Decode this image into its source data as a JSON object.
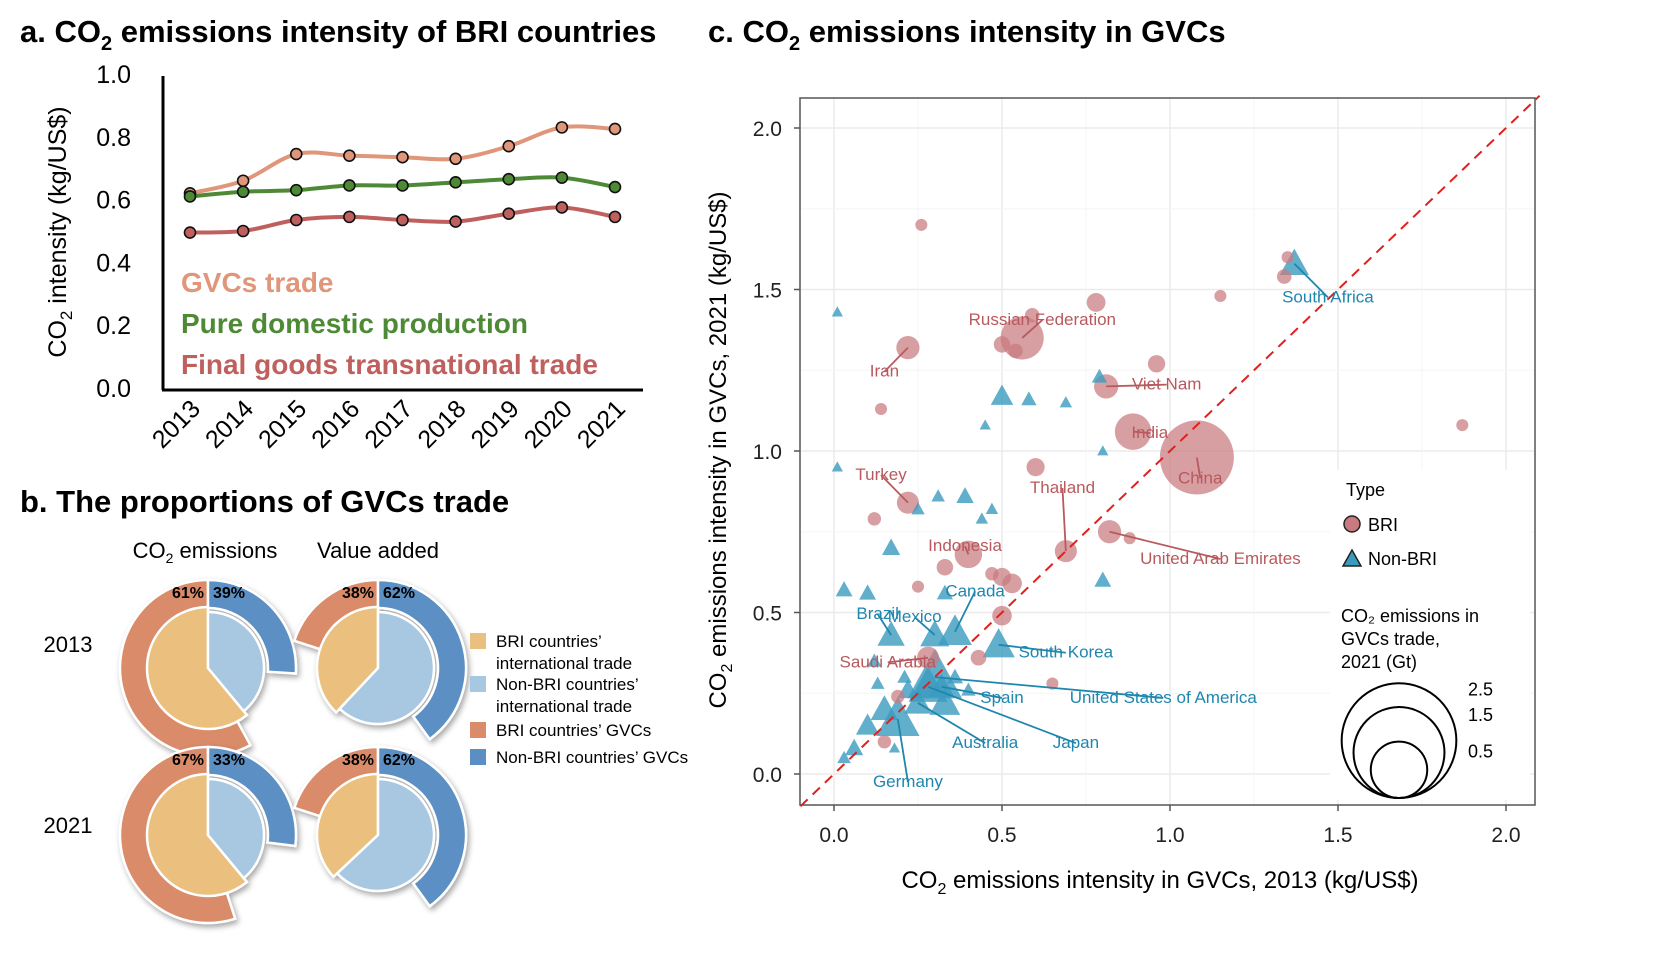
{
  "colors": {
    "gvcs": "#E0967A",
    "domestic": "#4E8A36",
    "final": "#C0605E",
    "bri_point": "#C97A7E",
    "nonbri_point": "#3B9BBF",
    "bri_label": "#B8595E",
    "nonbri_label": "#1F86AE",
    "diag": "#E0201E",
    "pie_bri_trade": "#EBC07E",
    "pie_nonbri_trade": "#A8C8E2",
    "pie_bri_gvcs": "#D98B6A",
    "pie_nonbri_gvcs": "#5B8FC3"
  },
  "panel_a": {
    "title_prefix": "a. CO",
    "title_sub": "2",
    "title_suffix": " emissions intensity of BRI countries",
    "ylabel_prefix": "CO",
    "ylabel_sub": "2",
    "ylabel_suffix": " intensity (kg/US$)"
  },
  "panel_b": {
    "title": "b. The proportions of GVCs trade",
    "col_heads": [
      {
        "prefix": "CO",
        "sub": "2",
        "suffix": " emissions"
      },
      {
        "prefix": "Value added",
        "sub": "",
        "suffix": ""
      }
    ],
    "row_labels": [
      "2013",
      "2021"
    ],
    "pies": [
      {
        "year": "2013",
        "metric": "CO2 emissions",
        "bri_trade_share": 0.61,
        "bri_gvcs_label": "61%",
        "nonbri_gvcs_label": "39%",
        "bri_gvcs_arc": 0.58,
        "nonbri_gvcs_arc": 0.26
      },
      {
        "year": "2013",
        "metric": "Value added",
        "bri_trade_share": 0.38,
        "bri_gvcs_label": "38%",
        "nonbri_gvcs_label": "62%",
        "bri_gvcs_arc": 0.2,
        "nonbri_gvcs_arc": 0.4
      },
      {
        "year": "2021",
        "metric": "CO2 emissions",
        "bri_trade_share": 0.61,
        "bri_gvcs_label": "67%",
        "nonbri_gvcs_label": "33%",
        "bri_gvcs_arc": 0.55,
        "nonbri_gvcs_arc": 0.27
      },
      {
        "year": "2021",
        "metric": "Value added",
        "bri_trade_share": 0.37,
        "bri_gvcs_label": "38%",
        "nonbri_gvcs_label": "62%",
        "bri_gvcs_arc": 0.2,
        "nonbri_gvcs_arc": 0.4
      }
    ],
    "legend": [
      {
        "line1": "BRI countries’",
        "line2": "international trade",
        "color_key": "pie_bri_trade"
      },
      {
        "line1": "Non-BRI countries’",
        "line2": "international trade",
        "color_key": "pie_nonbri_trade"
      },
      {
        "line1": "BRI countries’ GVCs",
        "line2": "",
        "color_key": "pie_bri_gvcs"
      },
      {
        "line1": "Non-BRI countries’ GVCs",
        "line2": "",
        "color_key": "pie_nonbri_gvcs"
      }
    ]
  },
  "panel_c": {
    "title_prefix": "c. CO",
    "title_sub": "2",
    "title_suffix": " emissions intensity in GVCs",
    "xlabel_prefix": "CO",
    "xlabel_sub": "2",
    "xlabel_suffix": " emissions intensity in GVCs, 2013 (kg/US$)",
    "ylabel_prefix": "CO",
    "ylabel_sub": "2",
    "ylabel_suffix": " emissions intensity in GVCs, 2021 (kg/US$)",
    "legend_type_title": "Type",
    "legend_type_items": [
      "BRI",
      "Non-BRI"
    ],
    "legend_size_title": [
      "CO₂ emissions in",
      "GVCs trade,",
      "2021 (Gt)"
    ],
    "legend_size_values": [
      2.5,
      1.5,
      0.5
    ],
    "legend_size_labels": [
      "2.5",
      "1.5",
      "0.5"
    ]
  },
  "chart_data": [
    {
      "type": "line",
      "title": "a. CO2 emissions intensity of BRI countries",
      "xlabel": "",
      "ylabel": "CO2 intensity (kg/US$)",
      "x": [
        "2013",
        "2014",
        "2015",
        "2016",
        "2017",
        "2018",
        "2019",
        "2020",
        "2021"
      ],
      "ylim": [
        0.0,
        1.0
      ],
      "yticks": [
        0.0,
        0.2,
        0.4,
        0.6,
        0.8,
        1.0
      ],
      "ytick_labels": [
        "0.0",
        "0.2",
        "0.4",
        "0.6",
        "0.8",
        "1.0"
      ],
      "grid": false,
      "legend_placement": "bottom-left (inline text)",
      "series": [
        {
          "name": "GVCs trade",
          "color_key": "gvcs",
          "values": [
            0.62,
            0.66,
            0.745,
            0.74,
            0.735,
            0.73,
            0.77,
            0.83,
            0.825
          ]
        },
        {
          "name": "Pure domestic production",
          "color_key": "domestic",
          "values": [
            0.61,
            0.625,
            0.63,
            0.645,
            0.645,
            0.655,
            0.665,
            0.67,
            0.64
          ]
        },
        {
          "name": "Final goods transnational trade",
          "color_key": "final",
          "values": [
            0.495,
            0.5,
            0.535,
            0.545,
            0.535,
            0.53,
            0.555,
            0.575,
            0.545
          ]
        }
      ]
    },
    {
      "type": "pie",
      "title": "b. The proportions of GVCs trade",
      "panels": [
        {
          "year": "2013",
          "metric": "CO2 emissions",
          "BRI GVCs": 61,
          "Non-BRI GVCs": 39
        },
        {
          "year": "2013",
          "metric": "Value added",
          "BRI GVCs": 38,
          "Non-BRI GVCs": 62
        },
        {
          "year": "2021",
          "metric": "CO2 emissions",
          "BRI GVCs": 67,
          "Non-BRI GVCs": 33
        },
        {
          "year": "2021",
          "metric": "Value added",
          "BRI GVCs": 38,
          "Non-BRI GVCs": 62
        }
      ],
      "legend": [
        "BRI countries’ international trade",
        "Non-BRI countries’ international trade",
        "BRI countries’ GVCs",
        "Non-BRI countries’ GVCs"
      ]
    },
    {
      "type": "scatter",
      "title": "c. CO2 emissions intensity in GVCs",
      "xlabel": "CO2 emissions intensity in GVCs, 2013 (kg/US$)",
      "ylabel": "CO2 emissions intensity in GVCs, 2021 (kg/US$)",
      "xlim": [
        -0.1,
        2.1
      ],
      "ylim": [
        -0.1,
        2.1
      ],
      "xticks": [
        0.0,
        0.5,
        1.0,
        1.5,
        2.0
      ],
      "yticks": [
        0.0,
        0.5,
        1.0,
        1.5,
        2.0
      ],
      "xtick_labels": [
        "0.0",
        "0.5",
        "1.0",
        "1.5",
        "2.0"
      ],
      "ytick_labels": [
        "0.0",
        "0.5",
        "1.0",
        "1.5",
        "2.0"
      ],
      "grid": true,
      "reference_line": "y = x (dashed red)",
      "legend_placement": "right",
      "points": [
        {
          "label": "China",
          "type": "BRI",
          "x": 1.08,
          "y": 0.98,
          "size": 2.5,
          "lx": 1.09,
          "ly": 0.9
        },
        {
          "label": "India",
          "type": "BRI",
          "x": 0.89,
          "y": 1.06,
          "size": 0.5,
          "lx": 0.94,
          "ly": 1.04
        },
        {
          "label": "Russian Federation",
          "type": "BRI",
          "x": 0.56,
          "y": 1.35,
          "size": 0.75,
          "lx": 0.62,
          "ly": 1.39
        },
        {
          "label": "Iran",
          "type": "BRI",
          "x": 0.22,
          "y": 1.32,
          "size": 0.16,
          "lx": 0.15,
          "ly": 1.23
        },
        {
          "label": "Viet Nam",
          "type": "BRI",
          "x": 0.81,
          "y": 1.2,
          "size": 0.18,
          "lx": 0.99,
          "ly": 1.19
        },
        {
          "label": "Turkey",
          "type": "BRI",
          "x": 0.22,
          "y": 0.84,
          "size": 0.14,
          "lx": 0.14,
          "ly": 0.91
        },
        {
          "label": "Thailand",
          "type": "BRI",
          "x": 0.69,
          "y": 0.69,
          "size": 0.14,
          "lx": 0.68,
          "ly": 0.87
        },
        {
          "label": "Indonesia",
          "type": "BRI",
          "x": 0.4,
          "y": 0.68,
          "size": 0.25,
          "lx": 0.39,
          "ly": 0.69
        },
        {
          "label": "United Arab Emirates",
          "type": "BRI",
          "x": 0.82,
          "y": 0.75,
          "size": 0.16,
          "lx": 1.15,
          "ly": 0.65
        },
        {
          "label": "Saudi Arabia",
          "type": "BRI",
          "x": 0.28,
          "y": 0.36,
          "size": 0.14,
          "lx": 0.16,
          "ly": 0.33
        },
        {
          "label": "",
          "type": "BRI",
          "x": 0.26,
          "y": 1.7,
          "size": 0.02
        },
        {
          "label": "",
          "type": "BRI",
          "x": 0.59,
          "y": 1.42,
          "size": 0.04
        },
        {
          "label": "",
          "type": "BRI",
          "x": 0.78,
          "y": 1.46,
          "size": 0.09
        },
        {
          "label": "",
          "type": "BRI",
          "x": 0.5,
          "y": 1.33,
          "size": 0.06
        },
        {
          "label": "",
          "type": "BRI",
          "x": 0.54,
          "y": 1.31,
          "size": 0.04
        },
        {
          "label": "",
          "type": "BRI",
          "x": 0.96,
          "y": 1.27,
          "size": 0.07
        },
        {
          "label": "",
          "type": "BRI",
          "x": 1.15,
          "y": 1.48,
          "size": 0.02
        },
        {
          "label": "",
          "type": "BRI",
          "x": 1.34,
          "y": 1.54,
          "size": 0.04
        },
        {
          "label": "",
          "type": "BRI",
          "x": 1.35,
          "y": 1.6,
          "size": 0.02
        },
        {
          "label": "",
          "type": "BRI",
          "x": 0.14,
          "y": 1.13,
          "size": 0.02
        },
        {
          "label": "",
          "type": "BRI",
          "x": 0.6,
          "y": 0.95,
          "size": 0.08
        },
        {
          "label": "",
          "type": "BRI",
          "x": 0.88,
          "y": 0.73,
          "size": 0.02
        },
        {
          "label": "",
          "type": "BRI",
          "x": 1.87,
          "y": 1.08,
          "size": 0.02
        },
        {
          "label": "",
          "type": "BRI",
          "x": 0.12,
          "y": 0.79,
          "size": 0.03
        },
        {
          "label": "",
          "type": "BRI",
          "x": 0.47,
          "y": 0.62,
          "size": 0.03
        },
        {
          "label": "",
          "type": "BRI",
          "x": 0.5,
          "y": 0.61,
          "size": 0.08
        },
        {
          "label": "",
          "type": "BRI",
          "x": 0.53,
          "y": 0.59,
          "size": 0.1
        },
        {
          "label": "",
          "type": "BRI",
          "x": 0.33,
          "y": 0.64,
          "size": 0.06
        },
        {
          "label": "",
          "type": "BRI",
          "x": 0.5,
          "y": 0.49,
          "size": 0.1
        },
        {
          "label": "",
          "type": "BRI",
          "x": 0.65,
          "y": 0.28,
          "size": 0.02
        },
        {
          "label": "",
          "type": "BRI",
          "x": 0.43,
          "y": 0.36,
          "size": 0.05
        },
        {
          "label": "",
          "type": "BRI",
          "x": 0.25,
          "y": 0.58,
          "size": 0.02
        },
        {
          "label": "",
          "type": "BRI",
          "x": 0.15,
          "y": 0.1,
          "size": 0.03
        },
        {
          "label": "",
          "type": "BRI",
          "x": 0.19,
          "y": 0.24,
          "size": 0.03
        },
        {
          "label": "South Africa",
          "type": "Non-BRI",
          "x": 1.37,
          "y": 1.58,
          "size": 0.35,
          "lx": 1.47,
          "ly": 1.46
        },
        {
          "label": "South Korea",
          "type": "Non-BRI",
          "x": 0.49,
          "y": 0.4,
          "size": 0.45,
          "lx": 0.69,
          "ly": 0.36
        },
        {
          "label": "Canada",
          "type": "Non-BRI",
          "x": 0.36,
          "y": 0.44,
          "size": 0.5,
          "lx": 0.42,
          "ly": 0.55
        },
        {
          "label": "Mexico",
          "type": "Non-BRI",
          "x": 0.3,
          "y": 0.43,
          "size": 0.35,
          "lx": 0.24,
          "ly": 0.47
        },
        {
          "label": "Brazil",
          "type": "Non-BRI",
          "x": 0.17,
          "y": 0.43,
          "size": 0.3,
          "lx": 0.13,
          "ly": 0.48
        },
        {
          "label": "Spain",
          "type": "Non-BRI",
          "x": 0.32,
          "y": 0.27,
          "size": 0.25,
          "lx": 0.5,
          "ly": 0.22
        },
        {
          "label": "United States of America",
          "type": "Non-BRI",
          "x": 0.3,
          "y": 0.3,
          "size": 1.5,
          "lx": 0.98,
          "ly": 0.22
        },
        {
          "label": "Japan",
          "type": "Non-BRI",
          "x": 0.28,
          "y": 0.27,
          "size": 0.7,
          "lx": 0.72,
          "ly": 0.08
        },
        {
          "label": "Australia",
          "type": "Non-BRI",
          "x": 0.25,
          "y": 0.22,
          "size": 0.3,
          "lx": 0.45,
          "ly": 0.08
        },
        {
          "label": "Germany",
          "type": "Non-BRI",
          "x": 0.19,
          "y": 0.17,
          "size": 0.9,
          "lx": 0.22,
          "ly": -0.04
        },
        {
          "label": "",
          "type": "Non-BRI",
          "x": 0.01,
          "y": 1.43,
          "size": 0.02
        },
        {
          "label": "",
          "type": "Non-BRI",
          "x": 0.01,
          "y": 0.95,
          "size": 0.02
        },
        {
          "label": "",
          "type": "Non-BRI",
          "x": 0.5,
          "y": 1.17,
          "size": 0.18
        },
        {
          "label": "",
          "type": "Non-BRI",
          "x": 0.58,
          "y": 1.16,
          "size": 0.06
        },
        {
          "label": "",
          "type": "Non-BRI",
          "x": 0.69,
          "y": 1.15,
          "size": 0.03
        },
        {
          "label": "",
          "type": "Non-BRI",
          "x": 0.79,
          "y": 1.23,
          "size": 0.06
        },
        {
          "label": "",
          "type": "Non-BRI",
          "x": 0.45,
          "y": 1.08,
          "size": 0.02
        },
        {
          "label": "",
          "type": "Non-BRI",
          "x": 0.8,
          "y": 1.0,
          "size": 0.02
        },
        {
          "label": "",
          "type": "Non-BRI",
          "x": 0.31,
          "y": 0.86,
          "size": 0.04
        },
        {
          "label": "",
          "type": "Non-BRI",
          "x": 0.39,
          "y": 0.86,
          "size": 0.09
        },
        {
          "label": "",
          "type": "Non-BRI",
          "x": 0.17,
          "y": 0.7,
          "size": 0.1
        },
        {
          "label": "",
          "type": "Non-BRI",
          "x": 0.8,
          "y": 0.6,
          "size": 0.08
        },
        {
          "label": "",
          "type": "Non-BRI",
          "x": 0.03,
          "y": 0.57,
          "size": 0.08
        },
        {
          "label": "",
          "type": "Non-BRI",
          "x": 0.1,
          "y": 0.56,
          "size": 0.08
        },
        {
          "label": "",
          "type": "Non-BRI",
          "x": 0.25,
          "y": 0.82,
          "size": 0.04
        },
        {
          "label": "",
          "type": "Non-BRI",
          "x": 0.47,
          "y": 0.82,
          "size": 0.03
        },
        {
          "label": "",
          "type": "Non-BRI",
          "x": 0.44,
          "y": 0.79,
          "size": 0.03
        },
        {
          "label": "",
          "type": "Non-BRI",
          "x": 0.33,
          "y": 0.56,
          "size": 0.07
        },
        {
          "label": "",
          "type": "Non-BRI",
          "x": 0.12,
          "y": 0.35,
          "size": 0.05
        },
        {
          "label": "",
          "type": "Non-BRI",
          "x": 0.33,
          "y": 0.22,
          "size": 0.4
        },
        {
          "label": "",
          "type": "Non-BRI",
          "x": 0.15,
          "y": 0.2,
          "size": 0.3
        },
        {
          "label": "",
          "type": "Non-BRI",
          "x": 0.1,
          "y": 0.15,
          "size": 0.2
        },
        {
          "label": "",
          "type": "Non-BRI",
          "x": 0.06,
          "y": 0.08,
          "size": 0.1
        },
        {
          "label": "",
          "type": "Non-BRI",
          "x": 0.03,
          "y": 0.05,
          "size": 0.04
        },
        {
          "label": "",
          "type": "Non-BRI",
          "x": 0.21,
          "y": 0.3,
          "size": 0.05
        },
        {
          "label": "",
          "type": "Non-BRI",
          "x": 0.13,
          "y": 0.28,
          "size": 0.04
        },
        {
          "label": "",
          "type": "Non-BRI",
          "x": 0.4,
          "y": 0.26,
          "size": 0.05
        },
        {
          "label": "",
          "type": "Non-BRI",
          "x": 0.36,
          "y": 0.3,
          "size": 0.07
        },
        {
          "label": "",
          "type": "Non-BRI",
          "x": 0.22,
          "y": 0.26,
          "size": 0.15
        },
        {
          "label": "",
          "type": "Non-BRI",
          "x": 0.18,
          "y": 0.08,
          "size": 0.02
        }
      ]
    }
  ]
}
